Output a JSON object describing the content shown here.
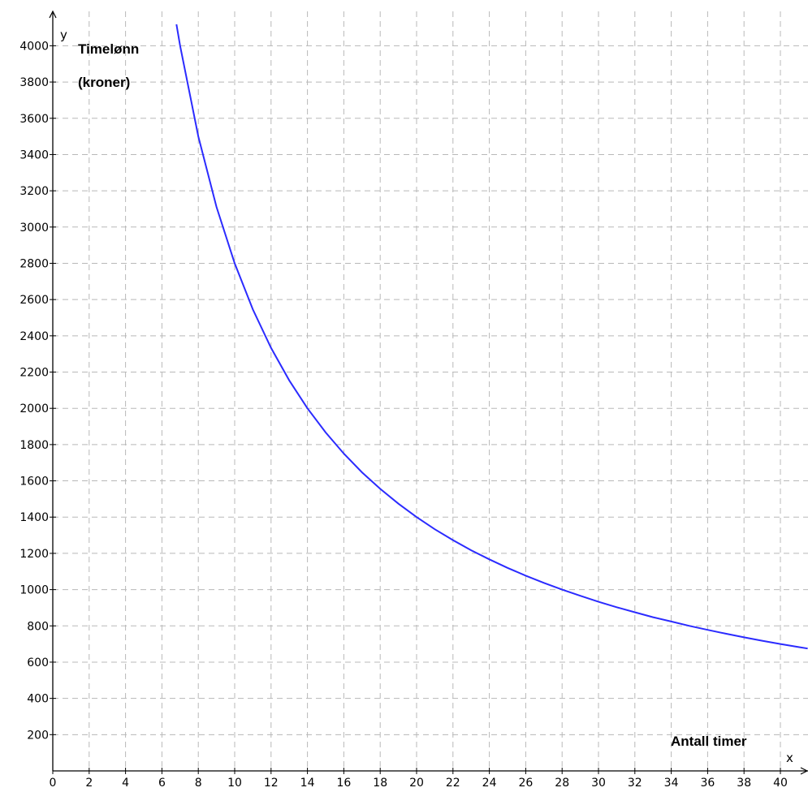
{
  "chart_data": {
    "type": "line",
    "title": "",
    "xlabel": "Antall timer",
    "ylabel_lines": [
      "Timelønn",
      "(kroner)"
    ],
    "x_axis_letter": "x",
    "y_axis_letter": "y",
    "xlim": [
      0,
      41.5
    ],
    "ylim": [
      0,
      4100
    ],
    "x_ticks": [
      0,
      2,
      4,
      6,
      8,
      10,
      12,
      14,
      16,
      18,
      20,
      22,
      24,
      26,
      28,
      30,
      32,
      34,
      36,
      38,
      40
    ],
    "y_ticks": [
      200,
      400,
      600,
      800,
      1000,
      1200,
      1400,
      1600,
      1800,
      2000,
      2200,
      2400,
      2600,
      2800,
      3000,
      3200,
      3400,
      3600,
      3800,
      4000
    ],
    "grid": true,
    "series": [
      {
        "color": "#2b2bff",
        "points": [
          [
            6.8,
            4118
          ],
          [
            7,
            4000
          ],
          [
            8,
            3500
          ],
          [
            9,
            3111
          ],
          [
            10,
            2800
          ],
          [
            11,
            2545
          ],
          [
            12,
            2333
          ],
          [
            13,
            2154
          ],
          [
            14,
            2000
          ],
          [
            15,
            1867
          ],
          [
            16,
            1750
          ],
          [
            17,
            1647
          ],
          [
            18,
            1556
          ],
          [
            19,
            1474
          ],
          [
            20,
            1400
          ],
          [
            21,
            1333
          ],
          [
            22,
            1273
          ],
          [
            23,
            1217
          ],
          [
            24,
            1167
          ],
          [
            25,
            1120
          ],
          [
            26,
            1077
          ],
          [
            27,
            1037
          ],
          [
            28,
            1000
          ],
          [
            29,
            966
          ],
          [
            30,
            933
          ],
          [
            31,
            903
          ],
          [
            32,
            875
          ],
          [
            33,
            848
          ],
          [
            34,
            824
          ],
          [
            35,
            800
          ],
          [
            36,
            778
          ],
          [
            37,
            757
          ],
          [
            38,
            737
          ],
          [
            39,
            718
          ],
          [
            40,
            700
          ],
          [
            41,
            683
          ],
          [
            41.5,
            675
          ]
        ]
      }
    ]
  }
}
